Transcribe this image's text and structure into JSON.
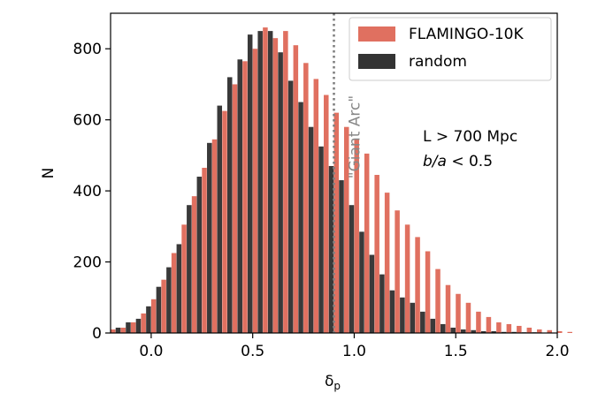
{
  "chart_data": {
    "type": "bar",
    "title": "",
    "xlabel_base": "δ",
    "xlabel_sub": "p",
    "ylabel": "N",
    "xlim": [
      -0.2,
      2.0
    ],
    "ylim": [
      0,
      900
    ],
    "x_ticks": [
      0.0,
      0.5,
      1.0,
      1.5,
      2.0
    ],
    "x_tick_labels": [
      "0.0",
      "0.5",
      "1.0",
      "1.5",
      "2.0"
    ],
    "y_ticks": [
      0,
      200,
      400,
      600,
      800
    ],
    "y_tick_labels": [
      "0",
      "200",
      "400",
      "600",
      "800"
    ],
    "bin_start": -0.2,
    "bin_width": 0.05,
    "series": [
      {
        "name": "FLAMINGO-10K",
        "color": "#e07060",
        "values": [
          10,
          15,
          30,
          55,
          95,
          150,
          225,
          305,
          385,
          465,
          545,
          625,
          700,
          765,
          800,
          860,
          830,
          850,
          810,
          760,
          715,
          670,
          620,
          580,
          545,
          505,
          445,
          395,
          345,
          305,
          270,
          230,
          180,
          135,
          110,
          85,
          60,
          45,
          30,
          25,
          20,
          15,
          10,
          8,
          5,
          3
        ]
      },
      {
        "name": "random",
        "color": "#333333",
        "values": [
          15,
          30,
          40,
          75,
          130,
          185,
          250,
          360,
          440,
          535,
          640,
          720,
          770,
          840,
          850,
          850,
          790,
          710,
          650,
          580,
          525,
          470,
          430,
          360,
          285,
          220,
          165,
          120,
          100,
          85,
          60,
          40,
          25,
          15,
          10,
          8,
          5,
          5,
          3,
          3,
          2,
          2,
          1,
          1,
          0,
          0
        ]
      }
    ],
    "annotations": {
      "vline_x": 0.9,
      "vline_label": "\"Giant Arc\"",
      "condition_1": "L > 700 Mpc",
      "condition_2_var": "b/a",
      "condition_2_rest": " < 0.5"
    },
    "legend_position": "top-right"
  }
}
